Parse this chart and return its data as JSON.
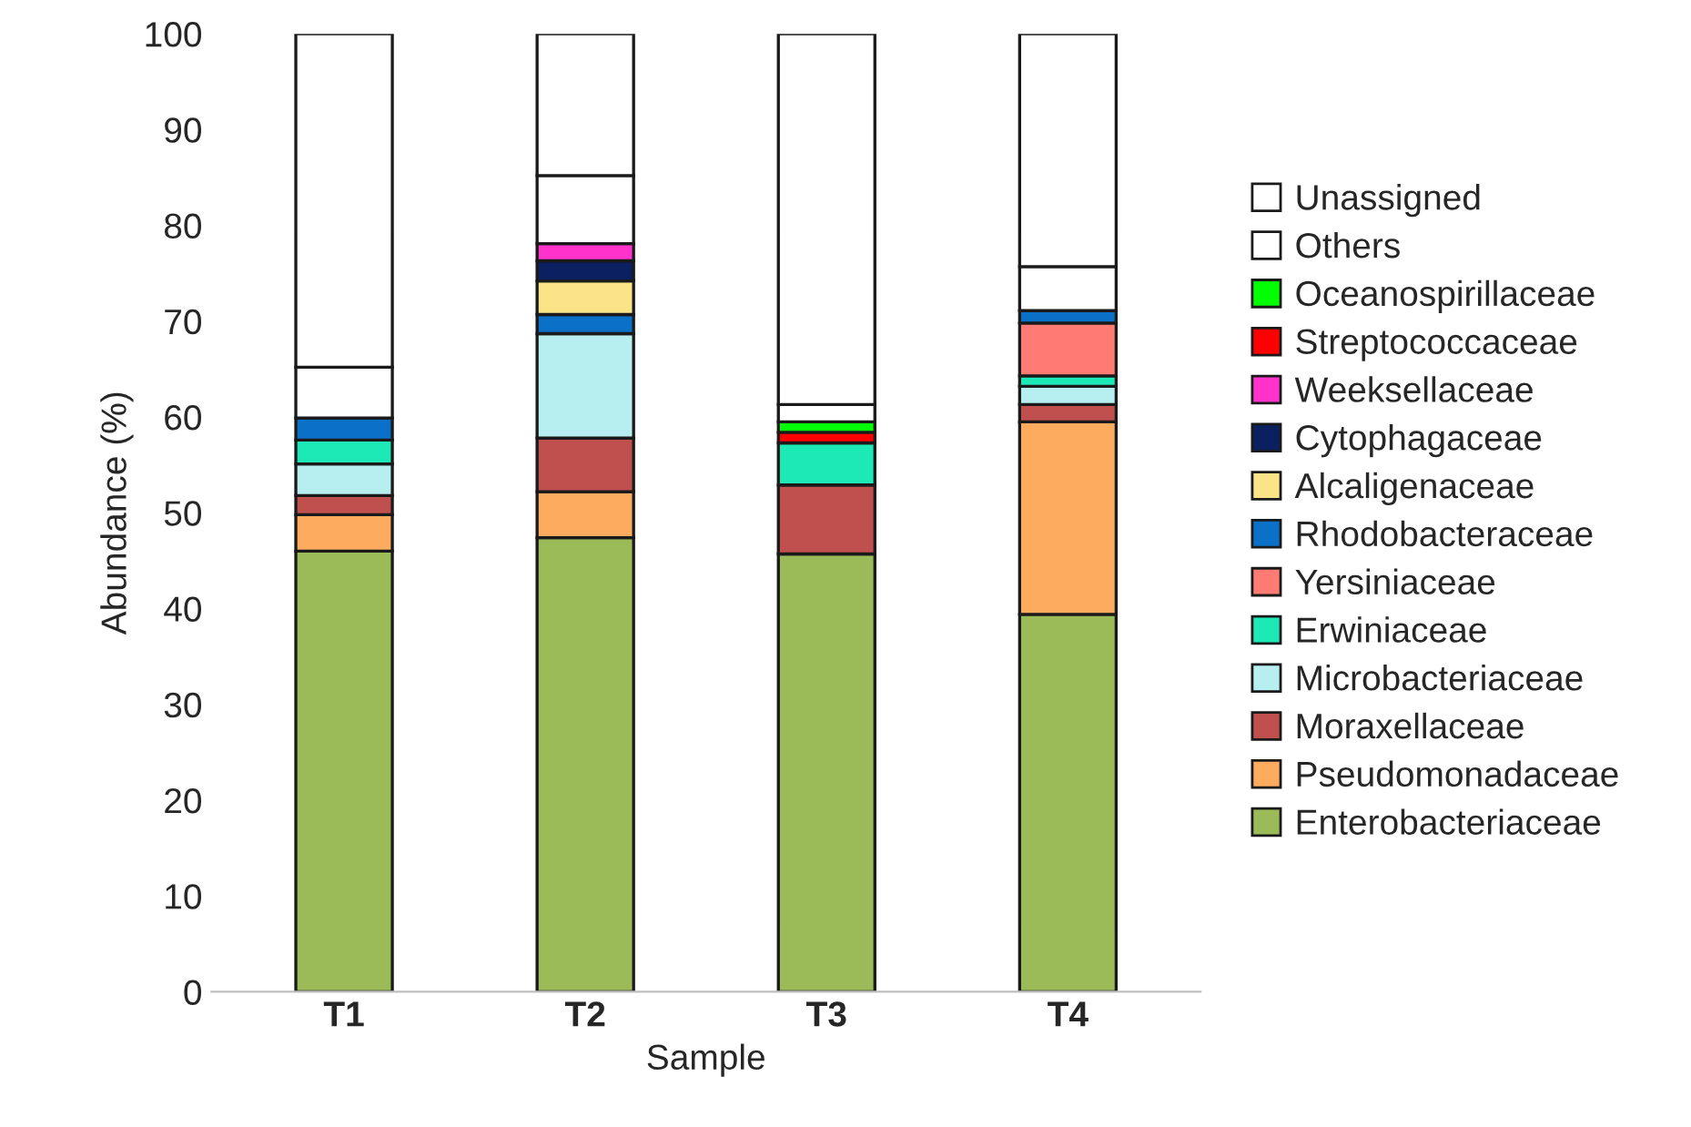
{
  "chart_data": {
    "type": "bar",
    "stacked": true,
    "xlabel": "Sample",
    "ylabel": "Abundance (%)",
    "categories": [
      "T1",
      "T2",
      "T3",
      "T4"
    ],
    "ylim": [
      0,
      100
    ],
    "yticks": [
      0,
      10,
      20,
      30,
      40,
      50,
      60,
      70,
      80,
      90,
      100
    ],
    "grid": false,
    "legend": "right",
    "series": [
      {
        "name": "Enterobacteriaceae",
        "color": "#9bbb59",
        "values": [
          46.0,
          47.4,
          45.7,
          39.4
        ]
      },
      {
        "name": "Pseudomonadaceae",
        "color": "#fdab5e",
        "values": [
          3.8,
          4.8,
          null,
          20.1
        ]
      },
      {
        "name": "Moraxellaceae",
        "color": "#c0504d",
        "values": [
          2.0,
          5.6,
          7.2,
          1.8
        ]
      },
      {
        "name": "Microbacteriaceae",
        "color": "#b7eef0",
        "values": [
          3.3,
          10.9,
          null,
          1.9
        ]
      },
      {
        "name": "Erwiniaceae",
        "color": "#1de9b6",
        "values": [
          2.5,
          null,
          4.4,
          1.1
        ]
      },
      {
        "name": "Yersiniaceae",
        "color": "#ff7b73",
        "values": [
          null,
          null,
          null,
          5.5
        ]
      },
      {
        "name": "Rhodobacteraceae",
        "color": "#0a70c8",
        "values": [
          2.3,
          2.0,
          null,
          1.3
        ]
      },
      {
        "name": "Alcaligenaceae",
        "color": "#fbe487",
        "values": [
          null,
          3.5,
          null,
          null
        ]
      },
      {
        "name": "Cytophagaceae",
        "color": "#0a2060",
        "values": [
          null,
          2.1,
          null,
          null
        ]
      },
      {
        "name": "Weeksellaceae",
        "color": "#ff33cc",
        "values": [
          null,
          1.8,
          null,
          null
        ]
      },
      {
        "name": "Streptococcaceae",
        "color": "#ff0000",
        "values": [
          null,
          null,
          1.1,
          null
        ]
      },
      {
        "name": "Oceanospirillaceae",
        "color": "#00ff00",
        "values": [
          null,
          null,
          1.1,
          null
        ]
      },
      {
        "name": "Others",
        "color": "#ffffff",
        "values": [
          5.3,
          7.1,
          1.8,
          4.6
        ]
      },
      {
        "name": "Unassigned",
        "color": "#ffffff",
        "values": [
          34.8,
          14.8,
          38.7,
          24.3
        ]
      }
    ]
  }
}
